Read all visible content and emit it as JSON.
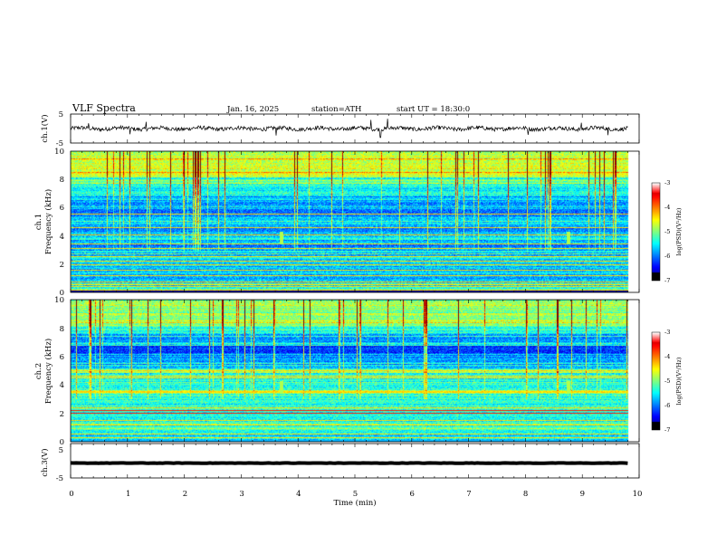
{
  "header": {
    "title": "VLF Spectra",
    "date": "Jan. 16, 2025",
    "station": "station=ATH",
    "start": "start UT = 18:30:0"
  },
  "chart_data": [
    {
      "type": "line",
      "id": "ch1",
      "ylabel": "ch.1(V)",
      "ylim": [
        -5,
        5
      ],
      "yticks": [
        "5",
        "-5"
      ],
      "xlim": [
        0,
        10
      ],
      "x_data_range": [
        0,
        9.8
      ],
      "baseline": 0,
      "noise_amplitude": 0.7,
      "spikes": [
        {
          "t": 0.32,
          "v": 1.8
        },
        {
          "t": 1.05,
          "v": -2.0
        },
        {
          "t": 1.33,
          "v": 2.3
        },
        {
          "t": 3.62,
          "v": -2.4
        },
        {
          "t": 5.28,
          "v": 3.0
        },
        {
          "t": 5.45,
          "v": -3.1
        },
        {
          "t": 5.58,
          "v": 3.4
        },
        {
          "t": 8.05,
          "v": -2.2
        },
        {
          "t": 8.98,
          "v": 2.0
        },
        {
          "t": 9.45,
          "v": -2.3
        }
      ]
    },
    {
      "type": "heatmap",
      "id": "ch1-spectrogram",
      "ylabel_line1": "ch.1",
      "ylabel_line2": "Frequency (kHz)",
      "ylim": [
        0,
        10
      ],
      "yticks": [
        "0",
        "2",
        "4",
        "6",
        "8",
        "10"
      ],
      "xlim": [
        0,
        10
      ],
      "x_data_range": [
        0,
        9.8
      ],
      "colorbar": {
        "label": "log(PSD)(V²/Hz)",
        "range": [
          -7,
          -3
        ],
        "ticks": [
          "-3",
          "-4",
          "-5",
          "-6",
          "-7"
        ]
      },
      "strong_lines_khz": [
        0.2,
        0.45,
        0.55,
        0.8,
        1.25,
        1.6,
        2.0,
        2.25,
        2.55,
        3.15,
        3.45,
        4.1,
        4.6,
        5.6
      ],
      "events_min": [
        3.7,
        8.75
      ]
    },
    {
      "type": "heatmap",
      "id": "ch2-spectrogram",
      "ylabel_line1": "ch.2",
      "ylabel_line2": "Frequency (kHz)",
      "ylim": [
        0,
        10
      ],
      "yticks": [
        "0",
        "2",
        "4",
        "6",
        "8",
        "10"
      ],
      "xlim": [
        0,
        10
      ],
      "x_data_range": [
        0,
        9.8
      ],
      "colorbar": {
        "label": "log(PSD)(V²/Hz)",
        "range": [
          -7,
          -3
        ],
        "ticks": [
          "-3",
          "-4",
          "-5",
          "-6",
          "-7"
        ]
      },
      "strong_lines_khz": [
        0.3,
        0.6,
        1.2,
        1.55,
        2.05,
        2.25,
        2.45,
        3.5,
        3.55,
        4.5,
        4.65,
        5.05
      ],
      "events_min": [
        3.7,
        8.75
      ]
    },
    {
      "type": "line",
      "id": "ch3",
      "ylabel": "ch.3(V)",
      "ylim": [
        -5,
        5
      ],
      "yticks": [
        "5",
        "-5"
      ],
      "xlim": [
        0,
        10
      ],
      "x_data_range": [
        0,
        9.8
      ],
      "baseline": -1.2,
      "noise_amplitude": 0.05,
      "xlabel": "Time (min)",
      "xticks": [
        "0",
        "1",
        "2",
        "3",
        "4",
        "5",
        "6",
        "7",
        "8",
        "9",
        "10"
      ]
    }
  ],
  "colors": {
    "jet_low": "#00008f",
    "jet_high": "#800000",
    "trace": "#000000"
  }
}
